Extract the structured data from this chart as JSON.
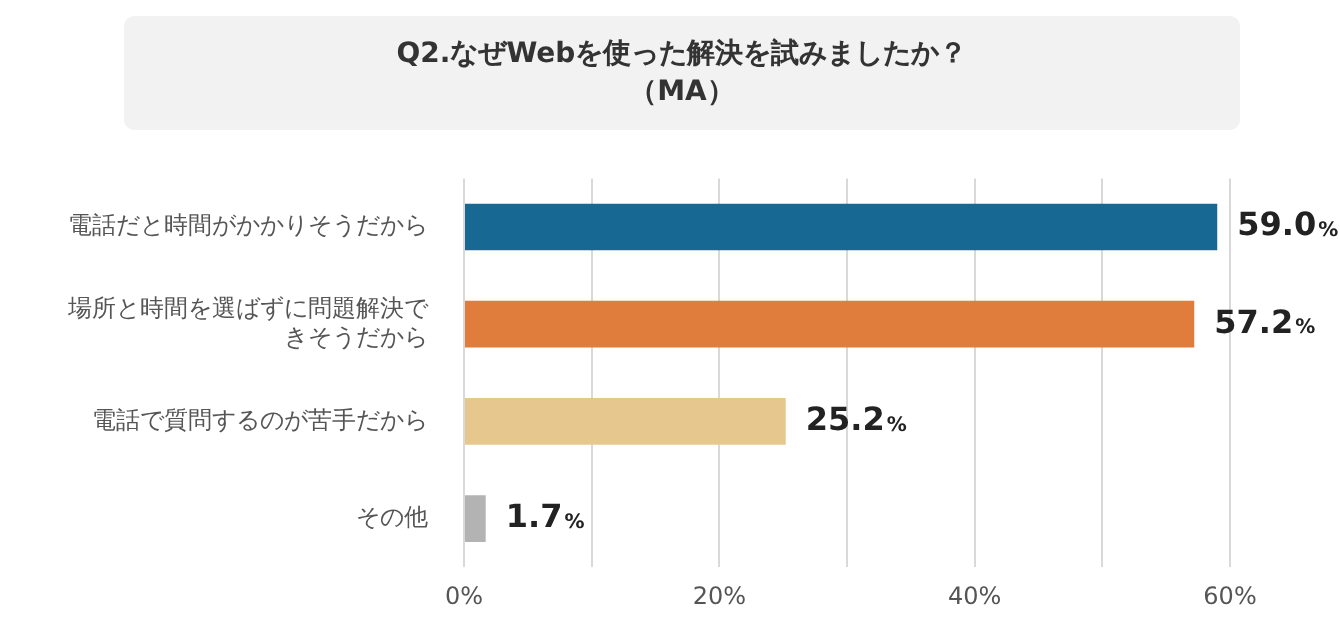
{
  "chart_data": {
    "type": "bar",
    "orientation": "horizontal",
    "title": "Q2.なぜWebを使った解決を試みましたか？",
    "subtitle": "（MA）",
    "categories": [
      "電話だと時間がかかりそうだから",
      "場所と時間を選ばずに問題解決できそうだから",
      "電話で質問するのが苦手だから",
      "その他"
    ],
    "values": [
      59.0,
      57.2,
      25.2,
      1.7
    ],
    "colors": [
      "#186894",
      "#e07d3c",
      "#e6c88e",
      "#b3b3b3"
    ],
    "value_labels": [
      "59.0%",
      "57.2%",
      "25.2%",
      "1.7%"
    ],
    "xlim": [
      0,
      60
    ],
    "xticks": [
      {
        "value": 0,
        "label": "0%"
      },
      {
        "value": 10,
        "label": null
      },
      {
        "value": 20,
        "label": "20%"
      },
      {
        "value": 30,
        "label": null
      },
      {
        "value": 40,
        "label": "40%"
      },
      {
        "value": 50,
        "label": null
      },
      {
        "value": 60,
        "label": "60%"
      }
    ],
    "grid": "x",
    "legend": false
  }
}
